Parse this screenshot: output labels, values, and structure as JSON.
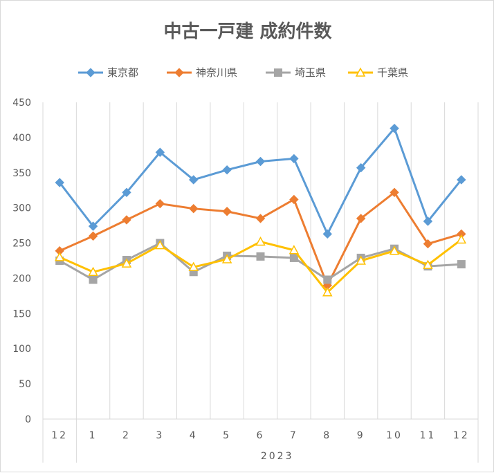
{
  "chart_data": {
    "type": "line",
    "title": "中古一戸建 成約件数",
    "categories": [
      "12",
      "1",
      "2",
      "3",
      "4",
      "5",
      "6",
      "7",
      "8",
      "9",
      "10",
      "11",
      "12"
    ],
    "year_group_label": "2023",
    "ylim": [
      0,
      450
    ],
    "yticks": [
      0,
      50,
      100,
      150,
      200,
      250,
      300,
      350,
      400,
      450
    ],
    "grid": "vertical",
    "legend_position": "top",
    "series": [
      {
        "name": "東京都",
        "color": "#5b9bd5",
        "marker": "diamond",
        "values": [
          336,
          274,
          322,
          379,
          340,
          354,
          366,
          370,
          263,
          357,
          413,
          281,
          340
        ]
      },
      {
        "name": "神奈川県",
        "color": "#ed7d31",
        "marker": "diamond",
        "values": [
          239,
          260,
          283,
          306,
          299,
          295,
          285,
          312,
          190,
          285,
          322,
          249,
          263
        ]
      },
      {
        "name": "埼玉県",
        "color": "#a5a5a5",
        "marker": "square",
        "values": [
          225,
          198,
          226,
          250,
          209,
          232,
          231,
          229,
          198,
          229,
          242,
          217,
          220
        ]
      },
      {
        "name": "千葉県",
        "color": "#ffc000",
        "marker": "triangle",
        "values": [
          230,
          209,
          221,
          247,
          216,
          227,
          252,
          240,
          180,
          225,
          239,
          219,
          255
        ]
      }
    ]
  }
}
